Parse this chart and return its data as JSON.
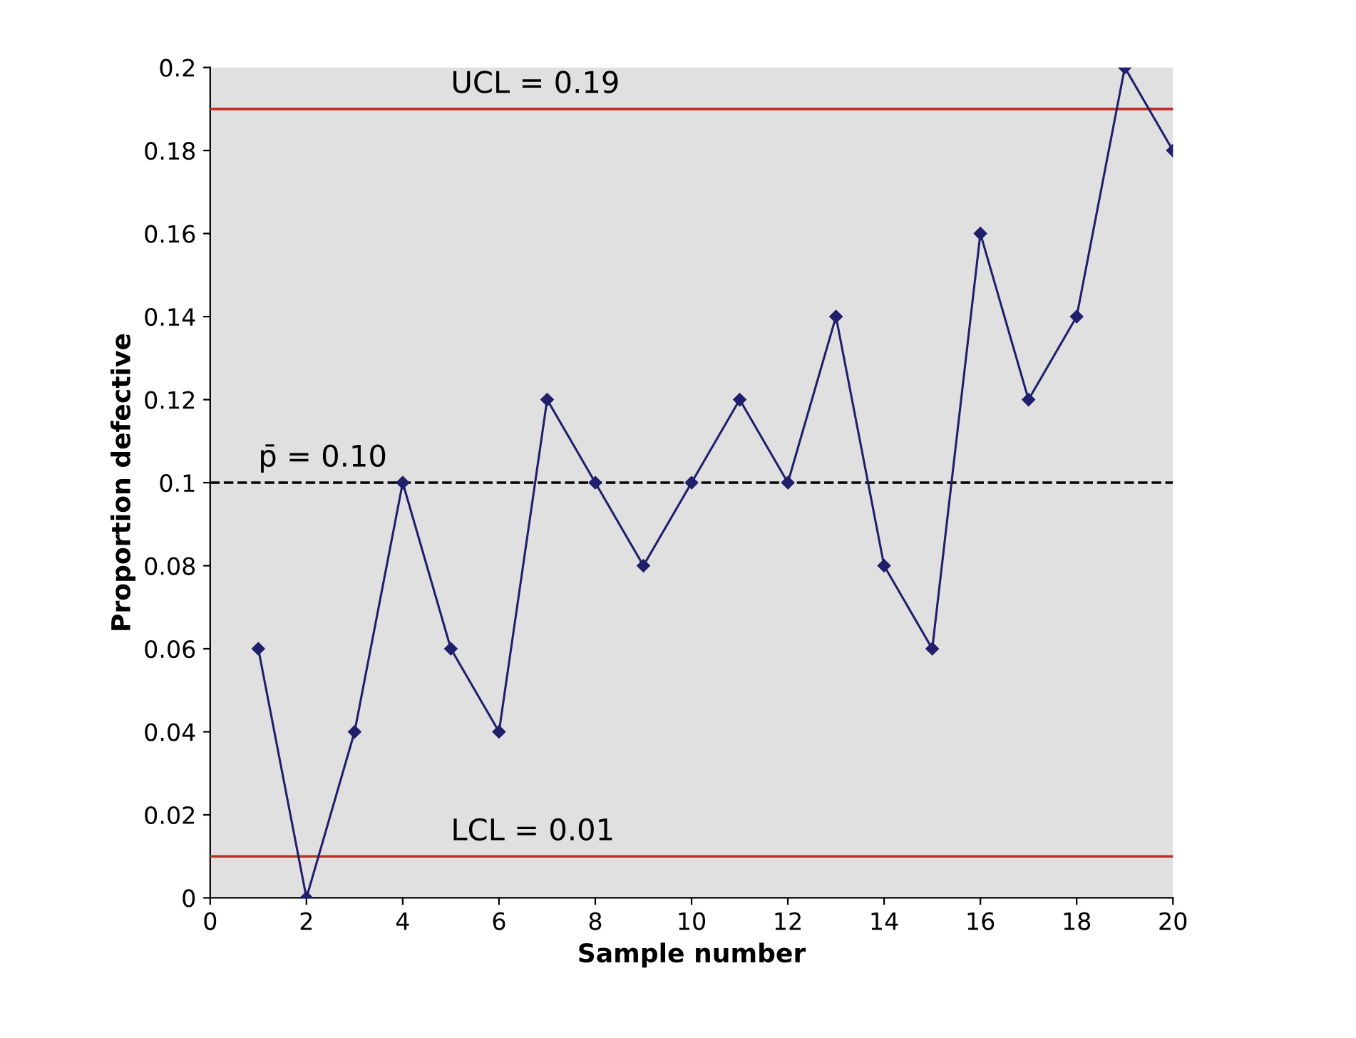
{
  "chart_data": {
    "type": "line",
    "xlabel": "Sample number",
    "ylabel": "Proportion defective",
    "x": [
      1,
      2,
      3,
      4,
      5,
      6,
      7,
      8,
      9,
      10,
      11,
      12,
      13,
      14,
      15,
      16,
      17,
      18,
      19,
      20
    ],
    "series": [
      {
        "color": "#1f1f6b",
        "values": [
          0.06,
          0,
          0.04,
          0.1,
          0.06,
          0.04,
          0.12,
          0.1,
          0.08,
          0.1,
          0.12,
          0.1,
          0.14,
          0.08,
          0.06,
          0.16,
          0.12,
          0.14,
          0.2,
          0.18
        ]
      }
    ],
    "xlim": [
      0,
      20
    ],
    "xticks": [
      0,
      2,
      4,
      6,
      8,
      10,
      12,
      14,
      16,
      18,
      20
    ],
    "ylim": [
      0,
      0.2
    ],
    "yticks": [
      0,
      0.02,
      0.04,
      0.06,
      0.08,
      0.1,
      0.12,
      0.14,
      0.16,
      0.18,
      0.2
    ],
    "ref_lines": [
      {
        "axis": "y",
        "value": 0.19,
        "label": "UCL = 0.19",
        "color": "#c0302a",
        "line_style": "solid"
      },
      {
        "axis": "y",
        "value": 0.1,
        "label": "p̄ = 0.10",
        "color": "#000000",
        "line_style": "dashed"
      },
      {
        "axis": "y",
        "value": 0.01,
        "label": "LCL = 0.01",
        "color": "#c0302a",
        "line_style": "solid"
      }
    ],
    "marker": "diamond",
    "line_style": "solid",
    "grid": false,
    "legend": false
  }
}
